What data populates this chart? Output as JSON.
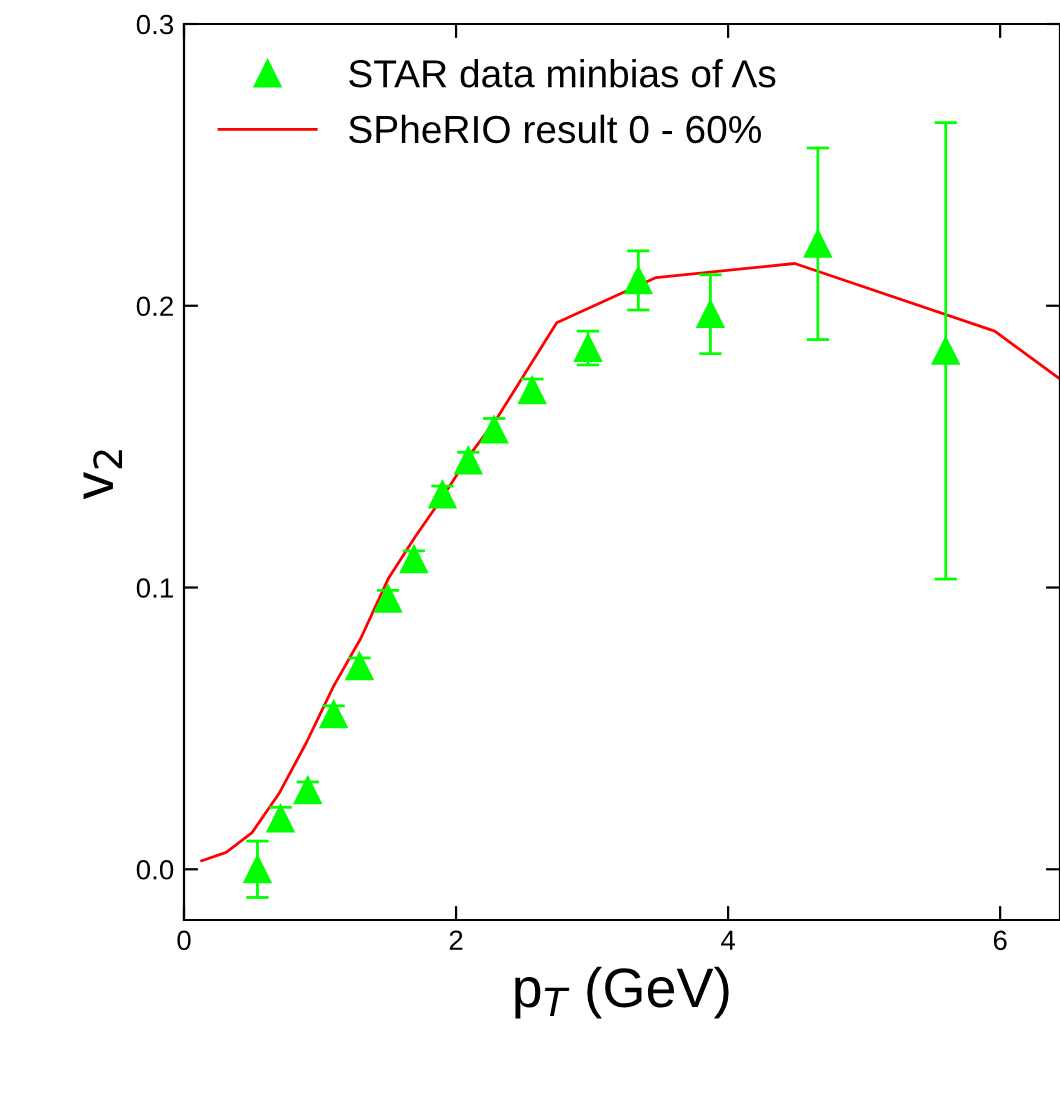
{
  "chart_data": {
    "type": "scatter",
    "xlabel": "p$_{T}$ (GeV)",
    "ylabel": "v$_{2}$",
    "xlim": [
      0,
      6.44
    ],
    "ylim": [
      -0.018,
      0.3
    ],
    "xticks": [
      0,
      2,
      4,
      6
    ],
    "yticks": [
      {
        "value": 0.0,
        "label": "0.0"
      },
      {
        "value": 0.1,
        "label": "0.1"
      },
      {
        "value": 0.2,
        "label": "0.2"
      },
      {
        "value": 0.3,
        "label": "0.3"
      }
    ],
    "grid": false,
    "legend": "top left",
    "series": [
      {
        "name": "STAR data minbias of Λs",
        "color": "#00ff00",
        "marker": "triangle",
        "x": [
          0.54,
          0.71,
          0.91,
          1.1,
          1.29,
          1.5,
          1.69,
          1.9,
          2.09,
          2.28,
          2.56,
          2.97,
          3.34,
          3.87,
          4.66,
          5.6
        ],
        "values": [
          0.0,
          0.018,
          0.028,
          0.055,
          0.072,
          0.096,
          0.11,
          0.133,
          0.145,
          0.156,
          0.17,
          0.185,
          0.209,
          0.197,
          0.222,
          0.184
        ],
        "errors": [
          0.01,
          0.004,
          0.003,
          0.003,
          0.003,
          0.003,
          0.003,
          0.003,
          0.003,
          0.004,
          0.004,
          0.006,
          0.0105,
          0.014,
          0.034,
          0.081
        ]
      },
      {
        "name": "SPheRIO result 0 - 60%",
        "type": "line",
        "color": "#ff0000",
        "marker": "none",
        "line_style": "solid",
        "x": [
          0.13,
          0.31,
          0.5,
          0.7,
          0.9,
          1.1,
          1.3,
          1.5,
          1.7,
          1.9,
          2.1,
          2.3,
          2.74,
          3.47,
          4.49,
          5.96,
          6.44
        ],
        "values": [
          0.003,
          0.006,
          0.013,
          0.027,
          0.045,
          0.065,
          0.082,
          0.103,
          0.118,
          0.132,
          0.147,
          0.16,
          0.194,
          0.21,
          0.215,
          0.191,
          0.174
        ]
      }
    ]
  }
}
